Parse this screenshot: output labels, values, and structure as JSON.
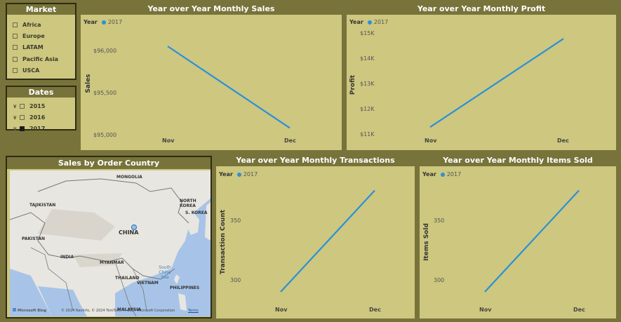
{
  "market_slicer": {
    "title": "Market",
    "items": [
      "Africa",
      "Europe",
      "LATAM",
      "Pacific Asia",
      "USCA"
    ]
  },
  "dates_slicer": {
    "title": "Dates",
    "items": [
      {
        "label": "2015",
        "checked": false
      },
      {
        "label": "2016",
        "checked": false
      },
      {
        "label": "2017",
        "checked": true
      }
    ]
  },
  "legend": {
    "title": "Year",
    "entry": "2017"
  },
  "colors": {
    "series": "#2b90d9",
    "panel": "#cdc77f",
    "background": "#77733a"
  },
  "sales_chart": {
    "title": "Year over Year Monthly Sales",
    "ylabel": "Sales",
    "yticks": [
      "$96,000",
      "$95,500",
      "$95,000"
    ]
  },
  "profit_chart": {
    "title": "Year over Year Monthly Profit",
    "ylabel": "Profit",
    "yticks": [
      "$15K",
      "$14K",
      "$13K",
      "$12K",
      "$11K"
    ]
  },
  "transactions_chart": {
    "title": "Year over Year Monthly Transactions",
    "ylabel": "Transaction Count",
    "yticks": [
      "350",
      "300"
    ]
  },
  "items_chart": {
    "title": "Year over Year Monthly Items Sold",
    "ylabel": "Items Sold",
    "yticks": [
      "350",
      "300"
    ]
  },
  "xticks": [
    "Nov",
    "Dec"
  ],
  "map": {
    "title": "Sales by Order Country",
    "labels": {
      "mongolia": "MONGOLIA",
      "tajikistan": "TAJIKISTAN",
      "north_korea": "NORTH KOREA",
      "south_korea": "S. KOREA",
      "china": "CHINA",
      "pakistan": "PAKISTAN",
      "india": "INDIA",
      "myanmar": "MYANMAR",
      "thailand": "THAILAND",
      "vietnam": "VIETNAM",
      "philippines": "PHILIPPINES",
      "south_china_sea": "South China Sea",
      "malaysia": "MALAYSIA"
    },
    "bing": "Microsoft Bing",
    "copyright": "© 2024 NavInfo, © 2024 TomTom, © 2024 Microsoft Corporation",
    "terms": "Terms"
  },
  "chart_data": [
    {
      "type": "line",
      "title": "Year over Year Monthly Sales",
      "xlabel": "",
      "ylabel": "Sales",
      "categories": [
        "Nov",
        "Dec"
      ],
      "series": [
        {
          "name": "2017",
          "values": [
            96050,
            95080
          ]
        }
      ],
      "ylim": [
        95000,
        96000
      ],
      "legend": "top-left"
    },
    {
      "type": "line",
      "title": "Year over Year Monthly Profit",
      "xlabel": "",
      "ylabel": "Profit",
      "categories": [
        "Nov",
        "Dec"
      ],
      "series": [
        {
          "name": "2017",
          "values": [
            11300,
            14800
          ]
        }
      ],
      "ylim": [
        11000,
        15000
      ],
      "legend": "top-left"
    },
    {
      "type": "line",
      "title": "Year over Year Monthly Transactions",
      "xlabel": "",
      "ylabel": "Transaction Count",
      "categories": [
        "Nov",
        "Dec"
      ],
      "series": [
        {
          "name": "2017",
          "values": [
            290,
            375
          ]
        }
      ],
      "ylim": [
        300,
        350
      ],
      "legend": "top-left"
    },
    {
      "type": "line",
      "title": "Year over Year Monthly Items Sold",
      "xlabel": "",
      "ylabel": "Items Sold",
      "categories": [
        "Nov",
        "Dec"
      ],
      "series": [
        {
          "name": "2017",
          "values": [
            290,
            375
          ]
        }
      ],
      "ylim": [
        300,
        350
      ],
      "legend": "top-left"
    }
  ]
}
